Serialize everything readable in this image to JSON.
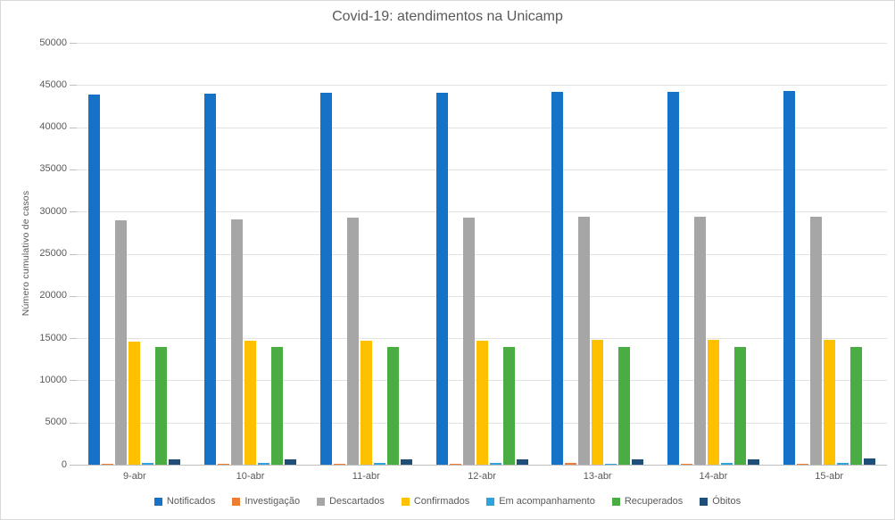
{
  "title": "Covid-19: atendimentos na Unicamp",
  "chart_data": {
    "type": "bar",
    "title": "Covid-19: atendimentos na Unicamp",
    "xlabel": "",
    "ylabel": "Número cumulativo de casos",
    "ylim": [
      0,
      50000
    ],
    "ytick_step": 5000,
    "ytick_labels": [
      "0",
      "5000",
      "10000",
      "15000",
      "20000",
      "25000",
      "30000",
      "35000",
      "40000",
      "45000",
      "50000"
    ],
    "grid": true,
    "legend_position": "bottom",
    "categories": [
      "9-abr",
      "10-abr",
      "11-abr",
      "12-abr",
      "13-abr",
      "14-abr",
      "15-abr"
    ],
    "series": [
      {
        "name": "Notificados",
        "color": "#1572C6",
        "values": [
          43900,
          43950,
          44050,
          44050,
          44150,
          44200,
          44300
        ]
      },
      {
        "name": "Investigação",
        "color": "#ED7D31",
        "values": [
          150,
          150,
          140,
          150,
          160,
          150,
          140
        ]
      },
      {
        "name": "Descartados",
        "color": "#A6A6A6",
        "values": [
          29000,
          29100,
          29250,
          29250,
          29350,
          29350,
          29400
        ]
      },
      {
        "name": "Confirmados",
        "color": "#FFC000",
        "values": [
          14600,
          14650,
          14700,
          14720,
          14750,
          14780,
          14800
        ]
      },
      {
        "name": "Em acompanhamento",
        "color": "#2FA3DC",
        "values": [
          180,
          200,
          180,
          160,
          150,
          200,
          180
        ]
      },
      {
        "name": "Recuperados",
        "color": "#4AAD43",
        "values": [
          13950,
          13950,
          13950,
          13960,
          13960,
          13980,
          13980
        ]
      },
      {
        "name": "Óbitos",
        "color": "#1F4E79",
        "values": [
          650,
          660,
          670,
          670,
          680,
          680,
          690
        ]
      }
    ]
  }
}
